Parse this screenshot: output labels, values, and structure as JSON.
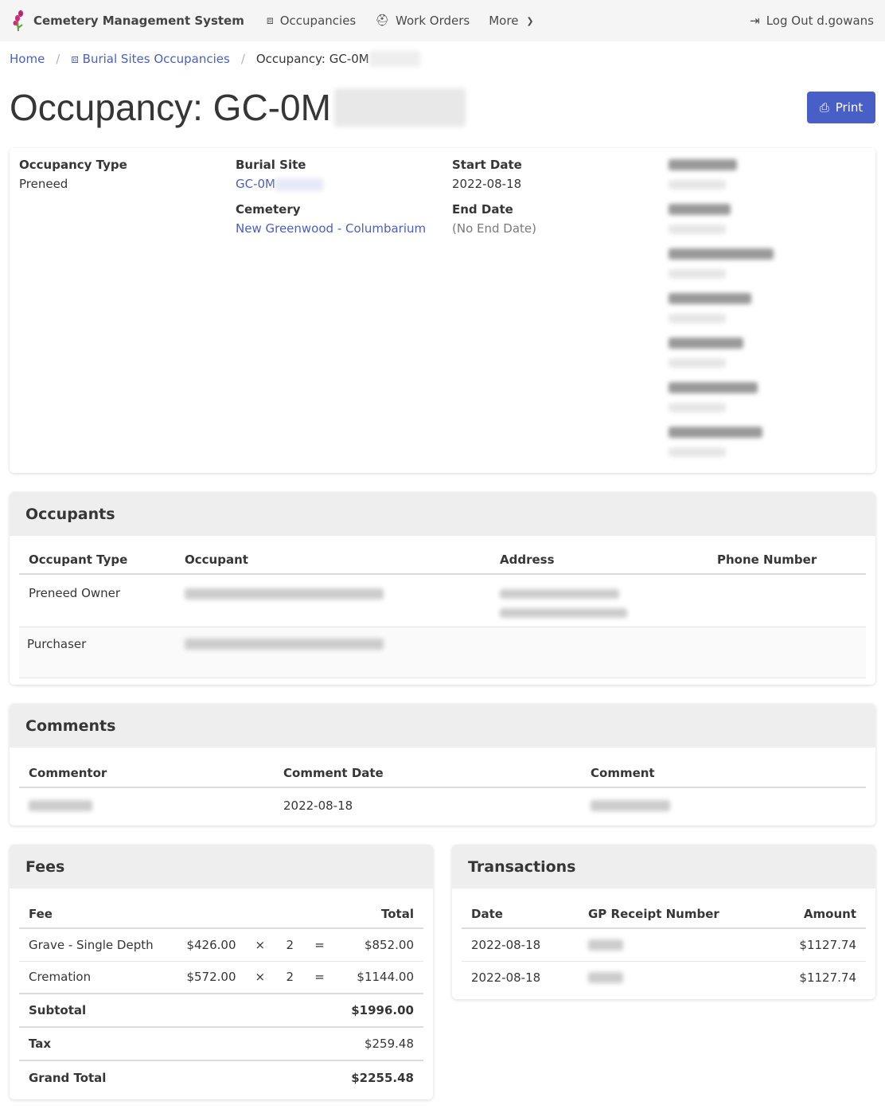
{
  "nav": {
    "brand": "Cemetery Management System",
    "items": [
      {
        "label": "Occupancies",
        "icon": "occupancy-icon"
      },
      {
        "label": "Work Orders",
        "icon": "hard-hat-icon"
      },
      {
        "label": "More",
        "icon": "chevron-down-icon"
      }
    ],
    "logout": "Log Out d.gowans"
  },
  "breadcrumb": {
    "home": "Home",
    "section": "Burial Sites Occupancies",
    "current": "Occupancy: GC-0M"
  },
  "title": "Occupancy: GC-0M",
  "print_label": "Print",
  "details": {
    "occupancy_type_label": "Occupancy Type",
    "occupancy_type": "Preneed",
    "burial_site_label": "Burial Site",
    "burial_site": "GC-0M",
    "cemetery_label": "Cemetery",
    "cemetery": "New Greenwood - Columbarium",
    "start_label": "Start Date",
    "start": "2022-08-18",
    "end_label": "End Date",
    "end": "(No End Date)"
  },
  "occupants": {
    "title": "Occupants",
    "headers": [
      "Occupant Type",
      "Occupant",
      "Address",
      "Phone Number"
    ],
    "rows": [
      {
        "type": "Preneed Owner"
      },
      {
        "type": "Purchaser"
      }
    ]
  },
  "comments": {
    "title": "Comments",
    "headers": [
      "Commentor",
      "Comment Date",
      "Comment"
    ],
    "rows": [
      {
        "date": "2022-08-18"
      }
    ]
  },
  "fees": {
    "title": "Fees",
    "headers": [
      "Fee",
      "Total"
    ],
    "rows": [
      {
        "name": "Grave - Single Depth",
        "price": "$426.00",
        "x": "×",
        "qty": "2",
        "eq": "=",
        "total": "$852.00"
      },
      {
        "name": "Cremation",
        "price": "$572.00",
        "x": "×",
        "qty": "2",
        "eq": "=",
        "total": "$1144.00"
      }
    ],
    "subtotal_label": "Subtotal",
    "subtotal": "$1996.00",
    "tax_label": "Tax",
    "tax": "$259.48",
    "grand_label": "Grand Total",
    "grand": "$2255.48"
  },
  "transactions": {
    "title": "Transactions",
    "headers": [
      "Date",
      "GP Receipt Number",
      "Amount"
    ],
    "rows": [
      {
        "date": "2022-08-18",
        "amount": "$1127.74"
      },
      {
        "date": "2022-08-18",
        "amount": "$1127.74"
      }
    ]
  },
  "colors": {
    "accent": "#485fc7",
    "nav_bg": "#f5f5f5"
  }
}
